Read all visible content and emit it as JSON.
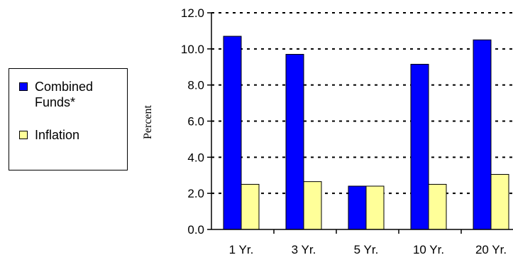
{
  "chart_data": {
    "type": "bar",
    "title": "",
    "ylabel": "Percent",
    "xlabel": "",
    "categories": [
      "1 Yr.",
      "3 Yr.",
      "5 Yr.",
      "10 Yr.",
      "20 Yr."
    ],
    "series": [
      {
        "name": "Combined\nFunds*",
        "color": "#0000ff",
        "values": [
          10.7,
          9.7,
          2.4,
          9.15,
          10.5
        ]
      },
      {
        "name": "Inflation",
        "color": "#ffff99",
        "values": [
          2.5,
          2.65,
          2.4,
          2.5,
          3.05
        ]
      }
    ],
    "ylim": [
      0,
      12
    ],
    "yticks": [
      "0.0",
      "2.0",
      "4.0",
      "6.0",
      "8.0",
      "10.0",
      "12.0"
    ],
    "grid": "dashed horizontal",
    "legend_position": "left"
  }
}
